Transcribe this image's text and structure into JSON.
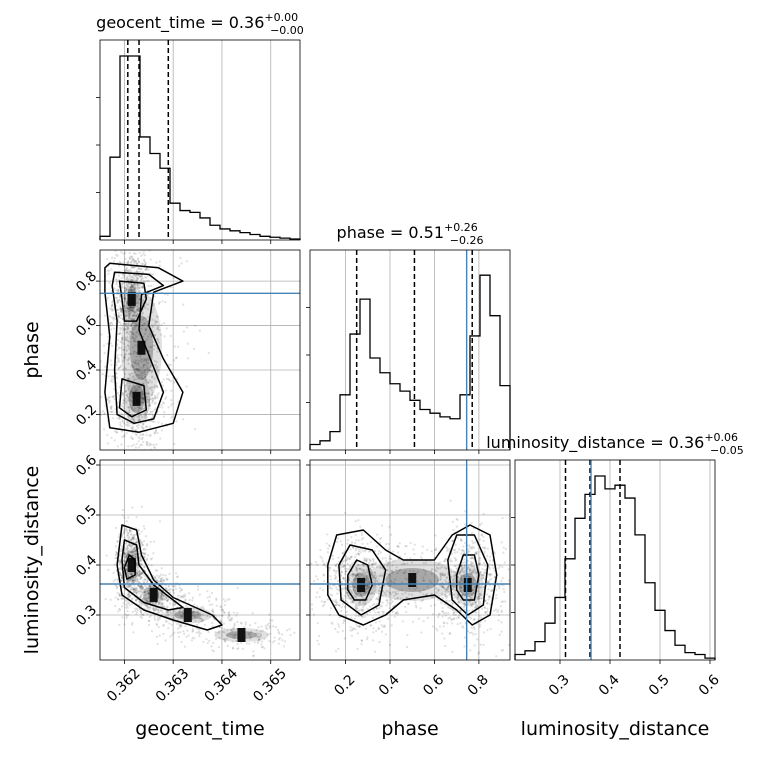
{
  "chart_data": {
    "type": "corner",
    "truth_color": "#4682b4",
    "parameters": [
      {
        "key": "geocent_time",
        "label": "geocent_time",
        "title_text": "geocent_time = 0.36",
        "title_plus": "+0.00",
        "title_minus": "−0.00",
        "range": [
          0.3615,
          0.3656
        ],
        "ticks": [
          0.362,
          0.363,
          0.364,
          0.365
        ],
        "tick_labels": [
          "0.362",
          "0.363",
          "0.364",
          "0.365"
        ],
        "quantiles": [
          0.36207,
          0.3623,
          0.3629
        ],
        "truth": null,
        "hist": [
          0.02,
          0.45,
          1.0,
          1.0,
          0.56,
          0.47,
          0.39,
          0.2,
          0.16,
          0.15,
          0.12,
          0.08,
          0.06,
          0.05,
          0.04,
          0.03,
          0.02,
          0.015,
          0.01,
          0.005
        ]
      },
      {
        "key": "phase",
        "label": "phase",
        "title_text": "phase = 0.51",
        "title_plus": "+0.26",
        "title_minus": "−0.26",
        "range": [
          0.04,
          0.94
        ],
        "ticks": [
          0.2,
          0.4,
          0.6,
          0.8
        ],
        "tick_labels": [
          "0.2",
          "0.4",
          "0.6",
          "0.8"
        ],
        "quantiles": [
          0.25,
          0.51,
          0.77
        ],
        "truth": 0.745,
        "hist": [
          0.03,
          0.05,
          0.1,
          0.3,
          0.63,
          0.82,
          0.5,
          0.42,
          0.36,
          0.32,
          0.27,
          0.22,
          0.2,
          0.18,
          0.17,
          0.3,
          0.62,
          0.95,
          0.73,
          0.35
        ]
      },
      {
        "key": "luminosity_distance",
        "label": "luminosity_distance",
        "title_text": "luminosity_distance = 0.36",
        "title_plus": "+0.06",
        "title_minus": "−0.05",
        "range": [
          0.21,
          0.61
        ],
        "ticks": [
          0.3,
          0.4,
          0.5,
          0.6
        ],
        "tick_labels": [
          "0.3",
          "0.4",
          "0.5",
          "0.6"
        ],
        "quantiles": [
          0.311,
          0.36,
          0.42
        ],
        "truth": 0.362,
        "hist": [
          0.03,
          0.05,
          0.1,
          0.2,
          0.34,
          0.55,
          0.77,
          0.9,
          1.0,
          0.93,
          0.95,
          0.88,
          0.68,
          0.42,
          0.27,
          0.16,
          0.08,
          0.04,
          0.03,
          0.01
        ]
      }
    ],
    "pairs": [
      {
        "x": "geocent_time",
        "y": "phase",
        "modes": [
          {
            "cx": 0.36215,
            "cy": 0.72,
            "sx": 0.00012,
            "sy": 0.07,
            "w": 0.45
          },
          {
            "cx": 0.36225,
            "cy": 0.27,
            "sx": 0.0002,
            "sy": 0.08,
            "w": 0.35
          },
          {
            "cx": 0.36235,
            "cy": 0.5,
            "sx": 0.0003,
            "sy": 0.18,
            "w": 0.2
          }
        ],
        "contours": [
          [
            [
              0.3617,
              0.88
            ],
            [
              0.3627,
              0.86
            ],
            [
              0.3632,
              0.8
            ],
            [
              0.3626,
              0.75
            ],
            [
              0.3625,
              0.6
            ],
            [
              0.3628,
              0.45
            ],
            [
              0.3632,
              0.3
            ],
            [
              0.363,
              0.16
            ],
            [
              0.3623,
              0.12
            ],
            [
              0.3617,
              0.14
            ],
            [
              0.3616,
              0.3
            ],
            [
              0.3617,
              0.55
            ],
            [
              0.3616,
              0.75
            ],
            [
              0.3616,
              0.86
            ]
          ],
          [
            [
              0.3618,
              0.84
            ],
            [
              0.3625,
              0.83
            ],
            [
              0.3628,
              0.78
            ],
            [
              0.36235,
              0.74
            ],
            [
              0.3623,
              0.58
            ],
            [
              0.36255,
              0.44
            ],
            [
              0.3628,
              0.3
            ],
            [
              0.3626,
              0.18
            ],
            [
              0.3622,
              0.16
            ],
            [
              0.36185,
              0.2
            ],
            [
              0.3618,
              0.4
            ],
            [
              0.36185,
              0.62
            ],
            [
              0.36175,
              0.78
            ]
          ],
          [
            [
              0.3619,
              0.8
            ],
            [
              0.3624,
              0.79
            ],
            [
              0.36245,
              0.72
            ],
            [
              0.36225,
              0.62
            ],
            [
              0.362,
              0.62
            ],
            [
              0.36195,
              0.72
            ]
          ],
          [
            [
              0.36195,
              0.36
            ],
            [
              0.3624,
              0.33
            ],
            [
              0.36245,
              0.22
            ],
            [
              0.36215,
              0.19
            ],
            [
              0.3619,
              0.23
            ]
          ]
        ]
      },
      {
        "x": "geocent_time",
        "y": "luminosity_distance",
        "modes": [
          {
            "cx": 0.36215,
            "cy": 0.4,
            "sx": 0.0001,
            "sy": 0.025,
            "w": 0.45
          },
          {
            "cx": 0.3626,
            "cy": 0.34,
            "sx": 0.00015,
            "sy": 0.012,
            "w": 0.3
          },
          {
            "cx": 0.3633,
            "cy": 0.3,
            "sx": 0.00035,
            "sy": 0.012,
            "w": 0.15
          },
          {
            "cx": 0.3644,
            "cy": 0.26,
            "sx": 0.0004,
            "sy": 0.01,
            "w": 0.1
          }
        ],
        "contours": [
          [
            [
              0.36195,
              0.48
            ],
            [
              0.36225,
              0.47
            ],
            [
              0.36235,
              0.42
            ],
            [
              0.3626,
              0.37
            ],
            [
              0.363,
              0.335
            ],
            [
              0.3638,
              0.3
            ],
            [
              0.364,
              0.28
            ],
            [
              0.3637,
              0.27
            ],
            [
              0.363,
              0.29
            ],
            [
              0.3624,
              0.31
            ],
            [
              0.36195,
              0.34
            ],
            [
              0.36185,
              0.4
            ]
          ],
          [
            [
              0.362,
              0.45
            ],
            [
              0.36225,
              0.44
            ],
            [
              0.3623,
              0.4
            ],
            [
              0.3626,
              0.36
            ],
            [
              0.363,
              0.33
            ],
            [
              0.3632,
              0.315
            ],
            [
              0.3629,
              0.31
            ],
            [
              0.3624,
              0.325
            ],
            [
              0.362,
              0.355
            ],
            [
              0.36195,
              0.41
            ]
          ],
          [
            [
              0.3621,
              0.42
            ],
            [
              0.36222,
              0.41
            ],
            [
              0.36222,
              0.38
            ],
            [
              0.36205,
              0.372
            ],
            [
              0.362,
              0.395
            ]
          ]
        ]
      },
      {
        "x": "phase",
        "y": "luminosity_distance",
        "modes": [
          {
            "cx": 0.27,
            "cy": 0.36,
            "sx": 0.05,
            "sy": 0.03,
            "w": 0.4
          },
          {
            "cx": 0.75,
            "cy": 0.36,
            "sx": 0.05,
            "sy": 0.03,
            "w": 0.4
          },
          {
            "cx": 0.5,
            "cy": 0.37,
            "sx": 0.15,
            "sy": 0.03,
            "w": 0.2
          }
        ],
        "contours": [
          [
            [
              0.12,
              0.4
            ],
            [
              0.16,
              0.46
            ],
            [
              0.28,
              0.47
            ],
            [
              0.38,
              0.43
            ],
            [
              0.46,
              0.41
            ],
            [
              0.6,
              0.41
            ],
            [
              0.68,
              0.46
            ],
            [
              0.76,
              0.48
            ],
            [
              0.85,
              0.46
            ],
            [
              0.88,
              0.38
            ],
            [
              0.85,
              0.3
            ],
            [
              0.77,
              0.28
            ],
            [
              0.7,
              0.31
            ],
            [
              0.6,
              0.34
            ],
            [
              0.46,
              0.33
            ],
            [
              0.38,
              0.3
            ],
            [
              0.28,
              0.28
            ],
            [
              0.17,
              0.3
            ],
            [
              0.12,
              0.34
            ]
          ],
          [
            [
              0.17,
              0.4
            ],
            [
              0.22,
              0.44
            ],
            [
              0.32,
              0.43
            ],
            [
              0.38,
              0.39
            ],
            [
              0.35,
              0.32
            ],
            [
              0.27,
              0.3
            ],
            [
              0.18,
              0.33
            ]
          ],
          [
            [
              0.66,
              0.41
            ],
            [
              0.7,
              0.46
            ],
            [
              0.78,
              0.46
            ],
            [
              0.84,
              0.4
            ],
            [
              0.82,
              0.32
            ],
            [
              0.75,
              0.3
            ],
            [
              0.68,
              0.33
            ]
          ],
          [
            [
              0.21,
              0.38
            ],
            [
              0.25,
              0.41
            ],
            [
              0.3,
              0.4
            ],
            [
              0.32,
              0.36
            ],
            [
              0.29,
              0.33
            ],
            [
              0.24,
              0.33
            ],
            [
              0.21,
              0.35
            ]
          ],
          [
            [
              0.7,
              0.38
            ],
            [
              0.73,
              0.42
            ],
            [
              0.78,
              0.42
            ],
            [
              0.8,
              0.38
            ],
            [
              0.78,
              0.33
            ],
            [
              0.73,
              0.33
            ],
            [
              0.7,
              0.35
            ]
          ]
        ]
      }
    ]
  }
}
